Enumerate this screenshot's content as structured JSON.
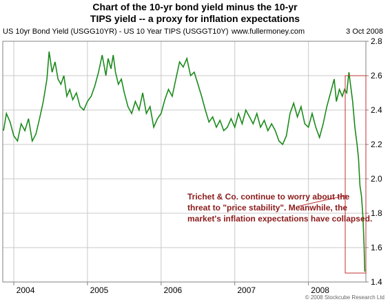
{
  "title_line1": "Chart of the 10-yr bond yield minus the 10-yr",
  "title_line2": "TIPS yield -- a proxy for inflation expectations",
  "header": {
    "series_label": "US 10yr Bond Yield (USGG10YR) - US 10 Year TIPS (USGGT10Y)",
    "site": "www.fullermoney.com",
    "date": "3 Oct 2008"
  },
  "annotation": {
    "line1": "Trichet & Co. continue to worry about the",
    "line2": "threat to \"price stability\". Meanwhile, the",
    "line3": "market's inflation expectations have collapsed."
  },
  "copyright": "© 2008 Stockcube Research Ltd",
  "colors": {
    "line": "#1a8a1a",
    "grid": "#c8c8c8",
    "annotation_text": "#8b1a1a",
    "highlight_box": "#c03030"
  },
  "chart_data": {
    "type": "line",
    "x_ticks": [
      "2004",
      "2005",
      "2006",
      "2007",
      "2008"
    ],
    "y_ticks": [
      "1.4",
      "1.6",
      "1.8",
      "2.0",
      "2.2",
      "2.4",
      "2.6",
      "2.8"
    ],
    "ylim": [
      1.4,
      2.8
    ],
    "xlim": [
      2003.85,
      2008.78
    ],
    "grid": true,
    "y_axis_side": "right",
    "points": [
      [
        2003.86,
        2.28
      ],
      [
        2003.9,
        2.38
      ],
      [
        2003.95,
        2.33
      ],
      [
        2004.0,
        2.25
      ],
      [
        2004.05,
        2.22
      ],
      [
        2004.1,
        2.32
      ],
      [
        2004.15,
        2.28
      ],
      [
        2004.2,
        2.35
      ],
      [
        2004.25,
        2.22
      ],
      [
        2004.3,
        2.26
      ],
      [
        2004.35,
        2.35
      ],
      [
        2004.4,
        2.45
      ],
      [
        2004.45,
        2.58
      ],
      [
        2004.48,
        2.74
      ],
      [
        2004.52,
        2.62
      ],
      [
        2004.56,
        2.68
      ],
      [
        2004.6,
        2.58
      ],
      [
        2004.64,
        2.55
      ],
      [
        2004.68,
        2.6
      ],
      [
        2004.72,
        2.48
      ],
      [
        2004.76,
        2.52
      ],
      [
        2004.8,
        2.46
      ],
      [
        2004.85,
        2.5
      ],
      [
        2004.9,
        2.42
      ],
      [
        2004.95,
        2.4
      ],
      [
        2005.0,
        2.45
      ],
      [
        2005.05,
        2.48
      ],
      [
        2005.1,
        2.54
      ],
      [
        2005.15,
        2.62
      ],
      [
        2005.2,
        2.72
      ],
      [
        2005.25,
        2.6
      ],
      [
        2005.28,
        2.7
      ],
      [
        2005.32,
        2.64
      ],
      [
        2005.35,
        2.72
      ],
      [
        2005.38,
        2.62
      ],
      [
        2005.42,
        2.55
      ],
      [
        2005.46,
        2.58
      ],
      [
        2005.5,
        2.5
      ],
      [
        2005.55,
        2.42
      ],
      [
        2005.6,
        2.38
      ],
      [
        2005.65,
        2.45
      ],
      [
        2005.7,
        2.4
      ],
      [
        2005.75,
        2.5
      ],
      [
        2005.8,
        2.38
      ],
      [
        2005.85,
        2.42
      ],
      [
        2005.9,
        2.3
      ],
      [
        2005.95,
        2.35
      ],
      [
        2006.0,
        2.38
      ],
      [
        2006.05,
        2.46
      ],
      [
        2006.1,
        2.52
      ],
      [
        2006.15,
        2.48
      ],
      [
        2006.2,
        2.58
      ],
      [
        2006.25,
        2.68
      ],
      [
        2006.3,
        2.65
      ],
      [
        2006.35,
        2.7
      ],
      [
        2006.4,
        2.6
      ],
      [
        2006.45,
        2.62
      ],
      [
        2006.5,
        2.55
      ],
      [
        2006.55,
        2.48
      ],
      [
        2006.6,
        2.4
      ],
      [
        2006.65,
        2.33
      ],
      [
        2006.7,
        2.36
      ],
      [
        2006.75,
        2.3
      ],
      [
        2006.8,
        2.34
      ],
      [
        2006.85,
        2.28
      ],
      [
        2006.9,
        2.3
      ],
      [
        2006.95,
        2.35
      ],
      [
        2007.0,
        2.3
      ],
      [
        2007.05,
        2.38
      ],
      [
        2007.1,
        2.32
      ],
      [
        2007.15,
        2.4
      ],
      [
        2007.2,
        2.36
      ],
      [
        2007.25,
        2.32
      ],
      [
        2007.3,
        2.38
      ],
      [
        2007.35,
        2.3
      ],
      [
        2007.4,
        2.34
      ],
      [
        2007.45,
        2.28
      ],
      [
        2007.5,
        2.32
      ],
      [
        2007.55,
        2.28
      ],
      [
        2007.6,
        2.22
      ],
      [
        2007.65,
        2.2
      ],
      [
        2007.7,
        2.25
      ],
      [
        2007.75,
        2.38
      ],
      [
        2007.8,
        2.44
      ],
      [
        2007.85,
        2.36
      ],
      [
        2007.9,
        2.42
      ],
      [
        2007.95,
        2.32
      ],
      [
        2008.0,
        2.3
      ],
      [
        2008.05,
        2.38
      ],
      [
        2008.1,
        2.3
      ],
      [
        2008.15,
        2.24
      ],
      [
        2008.2,
        2.32
      ],
      [
        2008.25,
        2.42
      ],
      [
        2008.3,
        2.5
      ],
      [
        2008.35,
        2.58
      ],
      [
        2008.38,
        2.45
      ],
      [
        2008.42,
        2.52
      ],
      [
        2008.46,
        2.48
      ],
      [
        2008.49,
        2.52
      ],
      [
        2008.52,
        2.5
      ],
      [
        2008.55,
        2.62
      ],
      [
        2008.57,
        2.55
      ],
      [
        2008.6,
        2.45
      ],
      [
        2008.63,
        2.3
      ],
      [
        2008.66,
        2.2
      ],
      [
        2008.68,
        2.12
      ],
      [
        2008.7,
        1.96
      ],
      [
        2008.72,
        1.9
      ],
      [
        2008.74,
        1.78
      ],
      [
        2008.755,
        1.62
      ],
      [
        2008.765,
        1.46
      ]
    ]
  }
}
